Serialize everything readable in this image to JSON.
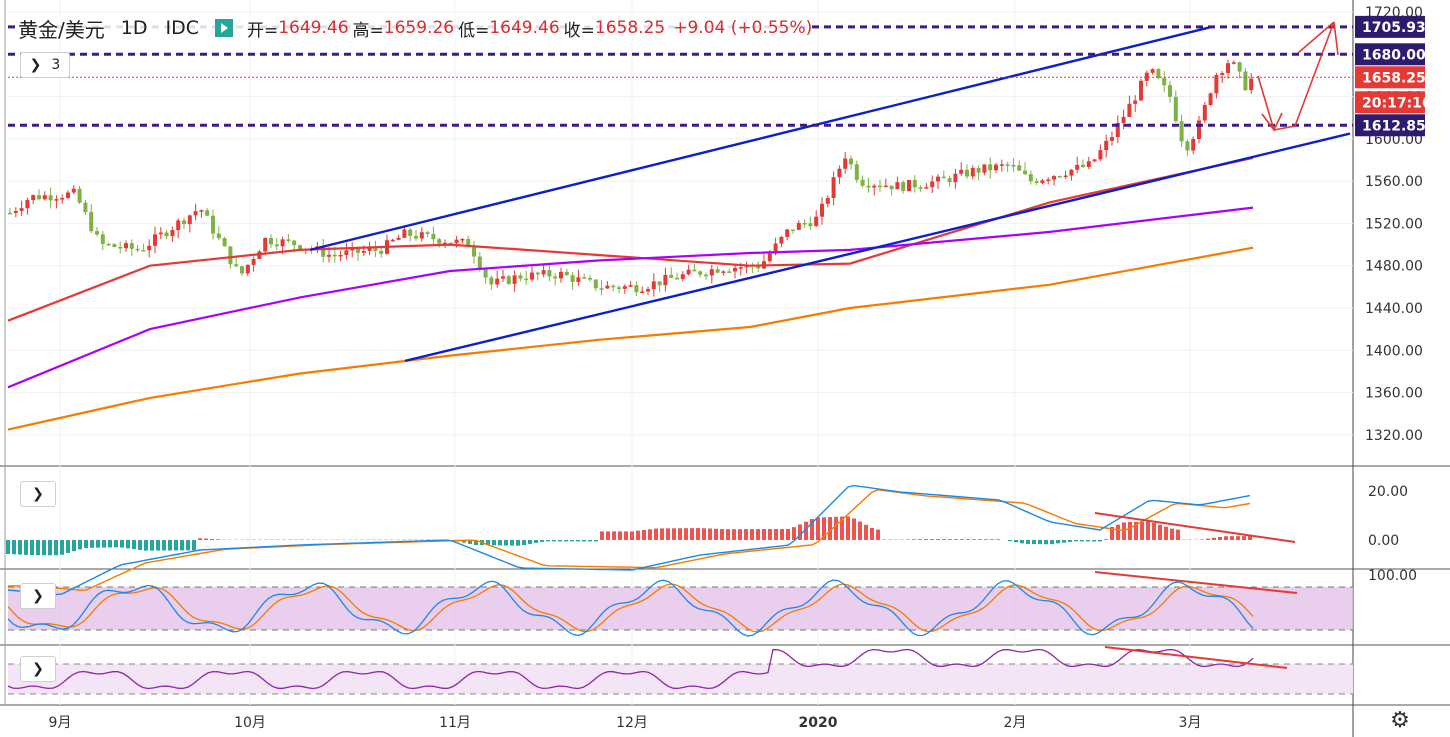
{
  "legend": {
    "symbol": "黄金/美元",
    "timeframe": "1D",
    "exchange": "IDC",
    "open_label": "开=",
    "open": "1649.46",
    "high_label": "高=",
    "high": "1659.26",
    "low_label": "低=",
    "low": "1649.46",
    "close_label": "收=",
    "close": "1658.25",
    "change": "+9.04 (+0.55%)"
  },
  "indicator_toggle_count": "3",
  "colors": {
    "up_candle": "#e53935",
    "down_candle": "#7cb342",
    "ma_fast": "#e53935",
    "ma_mid": "#aa00ff",
    "ma_slow": "#f57c00",
    "channel": "#0d1fcc",
    "level_line": "#3d1a8a",
    "annotation": "#e53935",
    "macd_line": "#1e88e5",
    "signal_line": "#f57c00",
    "hist_pos": "#ef5350",
    "hist_neg": "#26a69a",
    "osc_band": "#e1bee7"
  },
  "icons": [
    "chevron-right-icon",
    "gear-icon",
    "flag-icon"
  ],
  "chart_data": {
    "type": "candlestick",
    "symbol": "黄金/美元",
    "x_ticks": [
      "9月",
      "10月",
      "11月",
      "12月",
      "2020",
      "2月",
      "3月"
    ],
    "price_axis": {
      "range": [
        1300,
        1720
      ],
      "ticks": [
        "1720.00",
        "1680.00",
        "1640.00",
        "1600.00",
        "1560.00",
        "1520.00",
        "1480.00",
        "1440.00",
        "1400.00",
        "1360.00",
        "1320.00"
      ]
    },
    "price_labels": [
      {
        "value": "1705.93",
        "kind": "level"
      },
      {
        "value": "1680.00",
        "kind": "level"
      },
      {
        "value": "1658.25",
        "kind": "last"
      },
      {
        "value": "20:17:16",
        "kind": "countdown"
      },
      {
        "value": "1612.85",
        "kind": "level"
      }
    ],
    "horizontal_levels": [
      1705.93,
      1680.0,
      1612.85
    ],
    "last_price": 1658.25,
    "channel": {
      "upper": [
        [
          "10月",
          1495
        ],
        [
          "2月末",
          1706
        ]
      ],
      "lower": [
        [
          "10月末",
          1390
        ],
        [
          "3月中",
          1605
        ]
      ]
    },
    "key_closes": [
      {
        "date": "9月",
        "close": 1530
      },
      {
        "date": "10月",
        "close": 1495
      },
      {
        "date": "11月",
        "close": 1510
      },
      {
        "date": "11月中",
        "close": 1460
      },
      {
        "date": "12月",
        "close": 1465
      },
      {
        "date": "2020",
        "close": 1525
      },
      {
        "date": "1月初",
        "close": 1570
      },
      {
        "date": "2月",
        "close": 1585
      },
      {
        "date": "2月末",
        "close": 1645
      },
      {
        "date": "2月底",
        "close": 1585
      },
      {
        "date": "3月",
        "close": 1675
      },
      {
        "date": "3月初",
        "close": 1658
      }
    ],
    "moving_averages": [
      {
        "key": "ma_fast",
        "values": [
          1428,
          1480,
          1495,
          1500,
          1490,
          1480,
          1482,
          1540,
          1582
        ]
      },
      {
        "key": "ma_mid",
        "values": [
          1365,
          1420,
          1450,
          1475,
          1485,
          1492,
          1495,
          1512,
          1535
        ]
      },
      {
        "key": "ma_slow",
        "values": [
          1325,
          1355,
          1378,
          1395,
          1410,
          1422,
          1440,
          1462,
          1497
        ]
      }
    ],
    "macd_pane": {
      "ticks": [
        "20.00",
        "0.00"
      ]
    },
    "stoch_pane": {
      "ticks": [
        "100.00"
      ]
    },
    "rsi_pane": {
      "ticks": []
    }
  }
}
